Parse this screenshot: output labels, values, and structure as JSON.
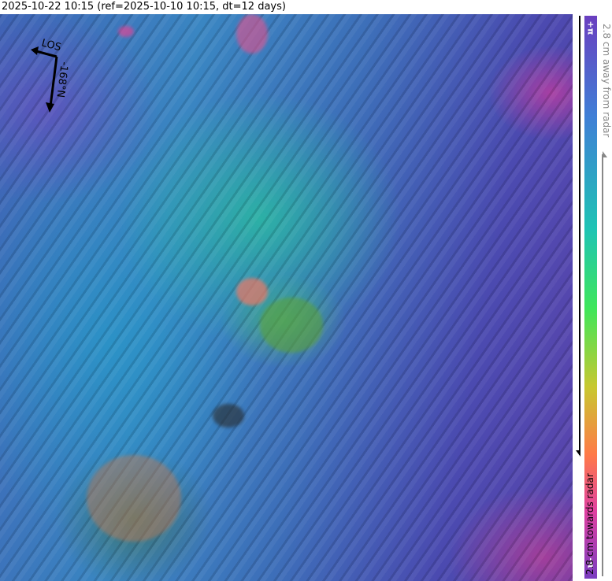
{
  "title": "2025-10-22 10:15 (ref=2025-10-10 10:15, dt=12 days)",
  "compass": {
    "los_label": "LOS",
    "heading_label": "-168°N"
  },
  "colorbar": {
    "top_label": "+π",
    "bottom_label": "-π",
    "away_label": "2.8 cm away from radar",
    "towards_label": "2.8 cm towards radar",
    "colors": [
      "#6a3fc0",
      "#3f7fd6",
      "#1fc4b4",
      "#3fe65a",
      "#c8c830",
      "#ff7a48",
      "#e040a0",
      "#7a3cc0"
    ]
  }
}
